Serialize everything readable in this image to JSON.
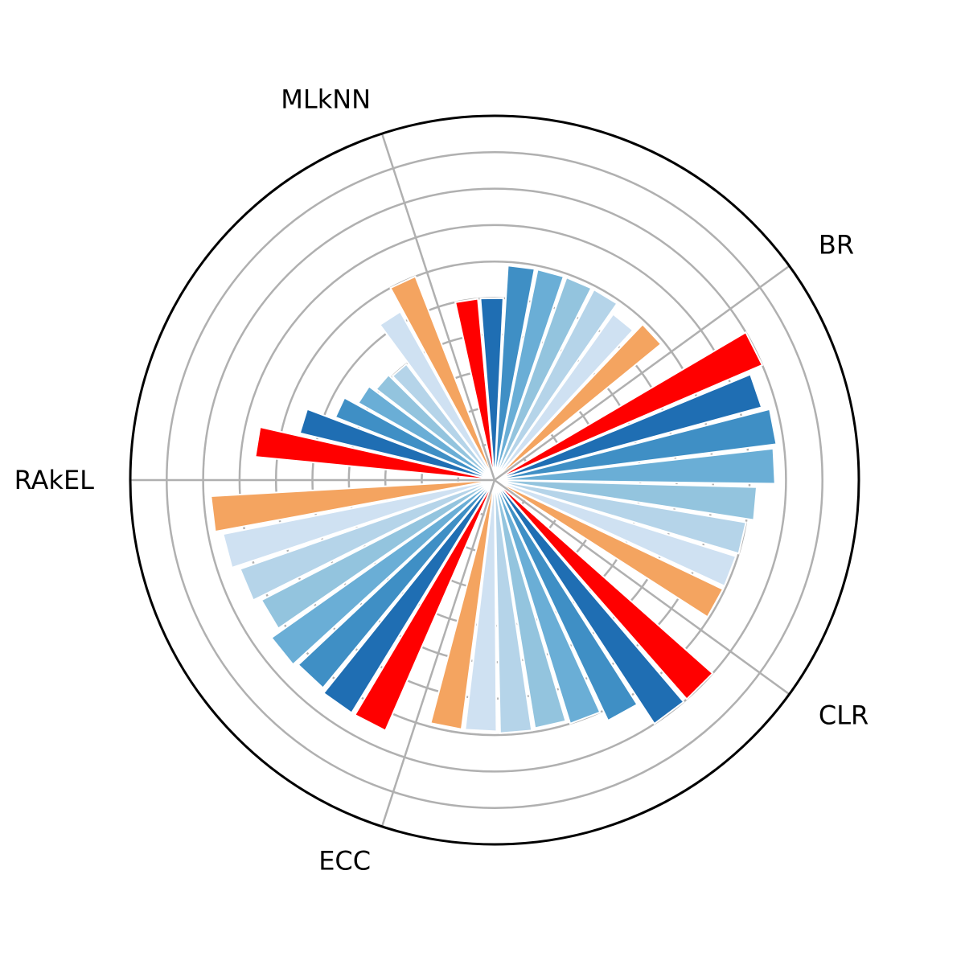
{
  "chart_data": {
    "type": "bar",
    "subtype": "polar",
    "groups": [
      "BR",
      "CLR",
      "ECC",
      "RAkEL",
      "MLkNN"
    ],
    "bars_per_group": 8,
    "series_color_order": [
      "#f4a460",
      "#cfe1f2",
      "#b5d4e9",
      "#93c4de",
      "#6aaed6",
      "#3f8fc5",
      "#1f6eb3",
      "#ff0000"
    ],
    "values": {
      "BR": [
        8.0,
        7.6,
        7.8,
        7.7,
        7.2,
        7.0,
        6.95,
        6.95
      ],
      "CLR": [
        8.0,
        8.0,
        7.3,
        7.0,
        6.9,
        6.95,
        6.9,
        6.9
      ],
      "ECC": [
        7.5,
        7.5,
        7.4,
        7.5,
        7.2,
        7.4,
        7.6,
        7.8
      ],
      "RAkEL": [
        6.6,
        5.5,
        4.7,
        4.3,
        4.1,
        4.0,
        5.3,
        6.0
      ],
      "MLkNN": [
        5.0,
        5.0,
        5.9,
        5.9,
        5.9,
        5.9,
        5.6,
        5.9
      ]
    },
    "rlim": [
      0,
      10
    ],
    "rticks": [
      1,
      2,
      3,
      4,
      5,
      6,
      7,
      8,
      9
    ],
    "grid": true
  },
  "colors": {
    "grid": "#b0b0b0",
    "outer_ring": "#000000",
    "background": "#ffffff"
  }
}
